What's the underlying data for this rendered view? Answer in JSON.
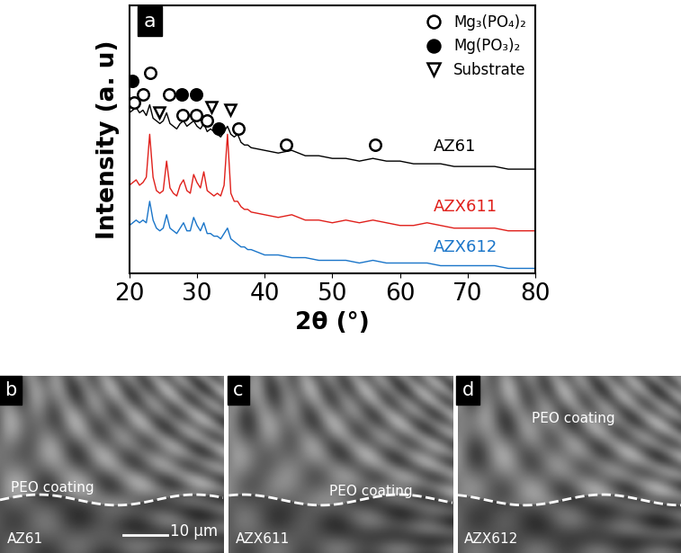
{
  "chart_data": {
    "type": "line",
    "panel_label": "a",
    "x_label": "2θ (°)",
    "y_label": "Intensity (a. u)",
    "xlim": [
      20,
      80
    ],
    "xticks": [
      20,
      30,
      40,
      50,
      60,
      70,
      80
    ],
    "ylim": [
      0,
      100
    ],
    "tick_labels": "x",
    "legend": "upper right",
    "x": [
      20,
      20.5,
      21,
      21.5,
      22,
      22.5,
      23,
      23.5,
      24,
      24.5,
      25,
      25.5,
      26,
      26.5,
      27,
      27.5,
      28,
      28.5,
      29,
      29.5,
      30,
      30.5,
      31,
      31.5,
      32,
      32.5,
      33,
      33.5,
      34,
      34.5,
      35,
      35.5,
      36,
      36.5,
      37,
      37.5,
      38,
      40,
      42,
      44,
      46,
      48,
      50,
      52,
      54,
      56,
      58,
      60,
      62,
      64,
      66,
      68,
      70,
      72,
      74,
      76,
      78,
      80
    ],
    "series": [
      {
        "name": "AZ61",
        "color": "#000000",
        "values": [
          60,
          61,
          62,
          60,
          61,
          59,
          63,
          58,
          57,
          56,
          57,
          60,
          56,
          55,
          54,
          56,
          57,
          55,
          56,
          57,
          55,
          54,
          56,
          53,
          54,
          53,
          52,
          51,
          53,
          55,
          52,
          51,
          52,
          49,
          48,
          48,
          47,
          46,
          45,
          46,
          44,
          44,
          43,
          43,
          42,
          43,
          42,
          42,
          41,
          41,
          41,
          40,
          40,
          40,
          40,
          39,
          39,
          39
        ]
      },
      {
        "name": "AZX611",
        "color": "#e0201b",
        "values": [
          33,
          34,
          35,
          33,
          34,
          36,
          52,
          36,
          31,
          30,
          31,
          42,
          32,
          30,
          29,
          33,
          35,
          31,
          30,
          37,
          34,
          32,
          38,
          31,
          30,
          29,
          30,
          29,
          33,
          52,
          30,
          27,
          27,
          25,
          24,
          24,
          23,
          22,
          21,
          22,
          20,
          20,
          19,
          20,
          19,
          20,
          19,
          18,
          18,
          19,
          18,
          17,
          17,
          17,
          17,
          16,
          16,
          16
        ]
      },
      {
        "name": "AZX612",
        "color": "#1a75c9",
        "values": [
          18,
          19,
          20,
          19,
          20,
          19,
          27,
          20,
          17,
          16,
          17,
          22,
          17,
          16,
          15,
          17,
          19,
          16,
          16,
          21,
          18,
          16,
          19,
          15,
          15,
          14,
          14,
          13,
          15,
          17,
          13,
          12,
          11,
          10,
          10,
          9,
          9,
          7,
          7,
          6,
          6,
          5,
          5,
          5,
          4,
          5,
          4,
          4,
          4,
          4,
          3,
          3,
          3,
          3,
          3,
          2,
          2,
          2
        ]
      }
    ],
    "markers": [
      {
        "name": "Mg₃(PO₄)₂",
        "marker": "open_circle",
        "x": [
          20.7,
          22,
          23.1,
          25.9,
          27.9,
          29.9,
          31.5,
          36.1,
          43.1,
          56.3
        ],
        "values": [
          64,
          67,
          75,
          67,
          59,
          59,
          57,
          54,
          48,
          48
        ]
      },
      {
        "name": "Mg(PO₃)₂",
        "marker": "filled_circle",
        "x": [
          20.4,
          27.7,
          29.9,
          33.2
        ],
        "values": [
          72,
          67,
          67,
          54
        ]
      },
      {
        "name": "Substrate",
        "marker": "open_triangle_down",
        "x": [
          24.4,
          32.1,
          34.9
        ],
        "values": [
          60,
          62,
          61
        ]
      }
    ]
  },
  "images": [
    {
      "label": "b",
      "coating": "PEO coating",
      "substrate": "AZ61",
      "scale_bar": "10 μm"
    },
    {
      "label": "c",
      "coating": "PEO coating",
      "substrate": "AZX611"
    },
    {
      "label": "d",
      "coating": "PEO coating",
      "substrate": "AZX612"
    }
  ]
}
